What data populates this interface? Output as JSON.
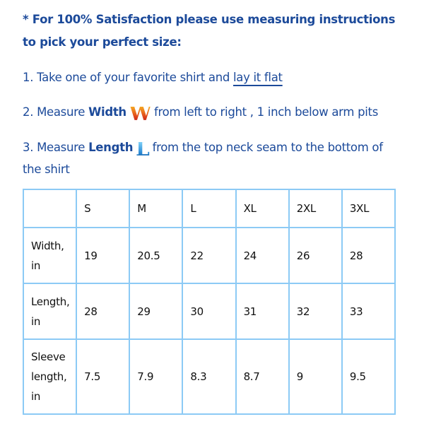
{
  "intro": {
    "line1": "* For 100% Satisfaction please use measuring instructions",
    "line2": "to pick your perfect size:"
  },
  "steps": {
    "s1_prefix": "1. Take one of your favorite shirt and ",
    "s1_link": "lay it flat",
    "s2_prefix": "2. Measure ",
    "s2_bold": "Width",
    "s2_icon": "W",
    "s2_suffix": "from left to right , 1 inch below arm pits",
    "s3_prefix": "3. Measure ",
    "s3_bold": "Length",
    "s3_icon": "L",
    "s3_suffix": "from the top neck seam to the bottom of",
    "s3_cont": "the shirt"
  },
  "table": {
    "headers": [
      "",
      "S",
      "M",
      "L",
      "XL",
      "2XL",
      "3XL"
    ],
    "rows": [
      {
        "label_a": "Width,",
        "label_b": "in",
        "label_c": "",
        "values": [
          "19",
          "20.5",
          "22",
          "24",
          "26",
          "28"
        ]
      },
      {
        "label_a": "Length,",
        "label_b": "in",
        "label_c": "",
        "values": [
          "28",
          "29",
          "30",
          "31",
          "32",
          "33"
        ]
      },
      {
        "label_a": "Sleeve",
        "label_b": "length,",
        "label_c": "in",
        "values": [
          "7.5",
          "7.9",
          "8.3",
          "8.7",
          "9",
          "9.5"
        ]
      }
    ]
  },
  "colors": {
    "text": "#1c4a9a",
    "table_border": "#8ccaf5"
  }
}
